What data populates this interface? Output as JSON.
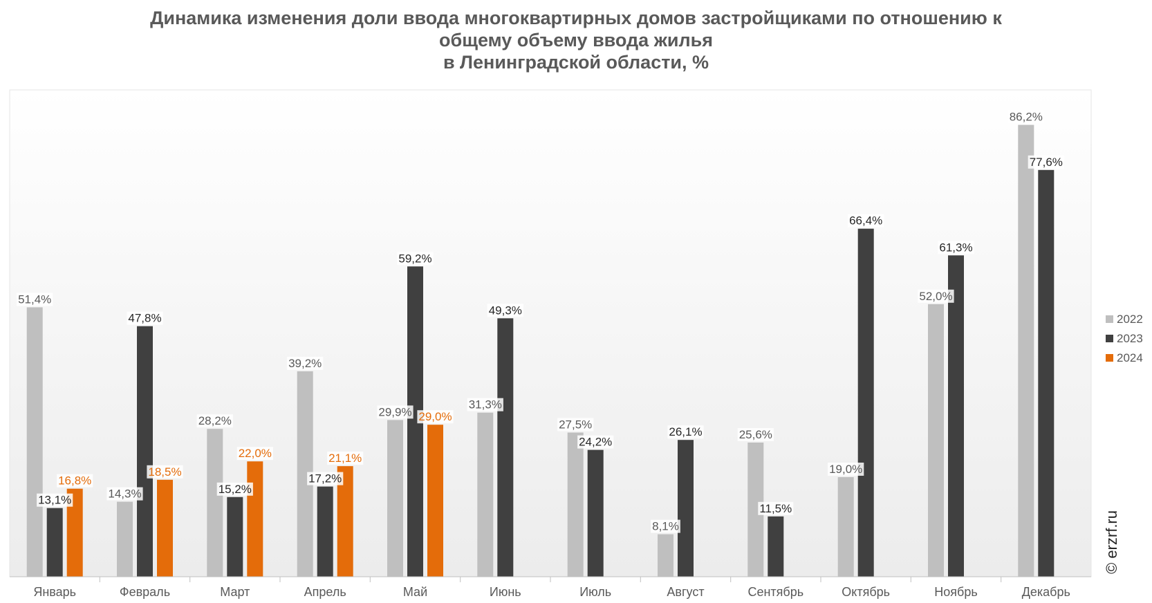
{
  "chart_data": {
    "type": "bar",
    "title_lines": [
      "Динамика изменения доли ввода многоквартирных домов застройщиками по отношению к",
      "общему объему ввода жилья",
      "в Ленинградской области, %"
    ],
    "categories": [
      "Январь",
      "Февраль",
      "Март",
      "Апрель",
      "Май",
      "Июнь",
      "Июль",
      "Август",
      "Сентябрь",
      "Октябрь",
      "Ноябрь",
      "Декабрь"
    ],
    "series": [
      {
        "name": "2022",
        "color": "#bfbfbf",
        "label_color": "#595959",
        "values": [
          51.4,
          14.3,
          28.2,
          39.2,
          29.9,
          31.3,
          27.5,
          8.1,
          25.6,
          19.0,
          52.0,
          86.2
        ],
        "labels": [
          "51,4%",
          "14,3%",
          "28,2%",
          "39,2%",
          "29,9%",
          "31,3%",
          "27,5%",
          "8,1%",
          "25,6%",
          "19,0%",
          "52,0%",
          "86,2%"
        ]
      },
      {
        "name": "2023",
        "color": "#404040",
        "label_color": "#262626",
        "values": [
          13.1,
          47.8,
          15.2,
          17.2,
          59.2,
          49.3,
          24.2,
          26.1,
          11.5,
          66.4,
          61.3,
          77.6
        ],
        "labels": [
          "13,1%",
          "47,8%",
          "15,2%",
          "17,2%",
          "59,2%",
          "49,3%",
          "24,2%",
          "26,1%",
          "11,5%",
          "66,4%",
          "61,3%",
          "77,6%"
        ]
      },
      {
        "name": "2024",
        "color": "#e46c0a",
        "label_color": "#e46c0a",
        "values": [
          16.8,
          18.5,
          22.0,
          21.1,
          29.0,
          null,
          null,
          null,
          null,
          null,
          null,
          null
        ],
        "labels": [
          "16,8%",
          "18,5%",
          "22,0%",
          "21,1%",
          "29,0%",
          null,
          null,
          null,
          null,
          null,
          null,
          null
        ]
      }
    ],
    "ylim": [
      0,
      100
    ],
    "grid": false,
    "legend_position": "right"
  },
  "watermark": "© erzrf.ru"
}
